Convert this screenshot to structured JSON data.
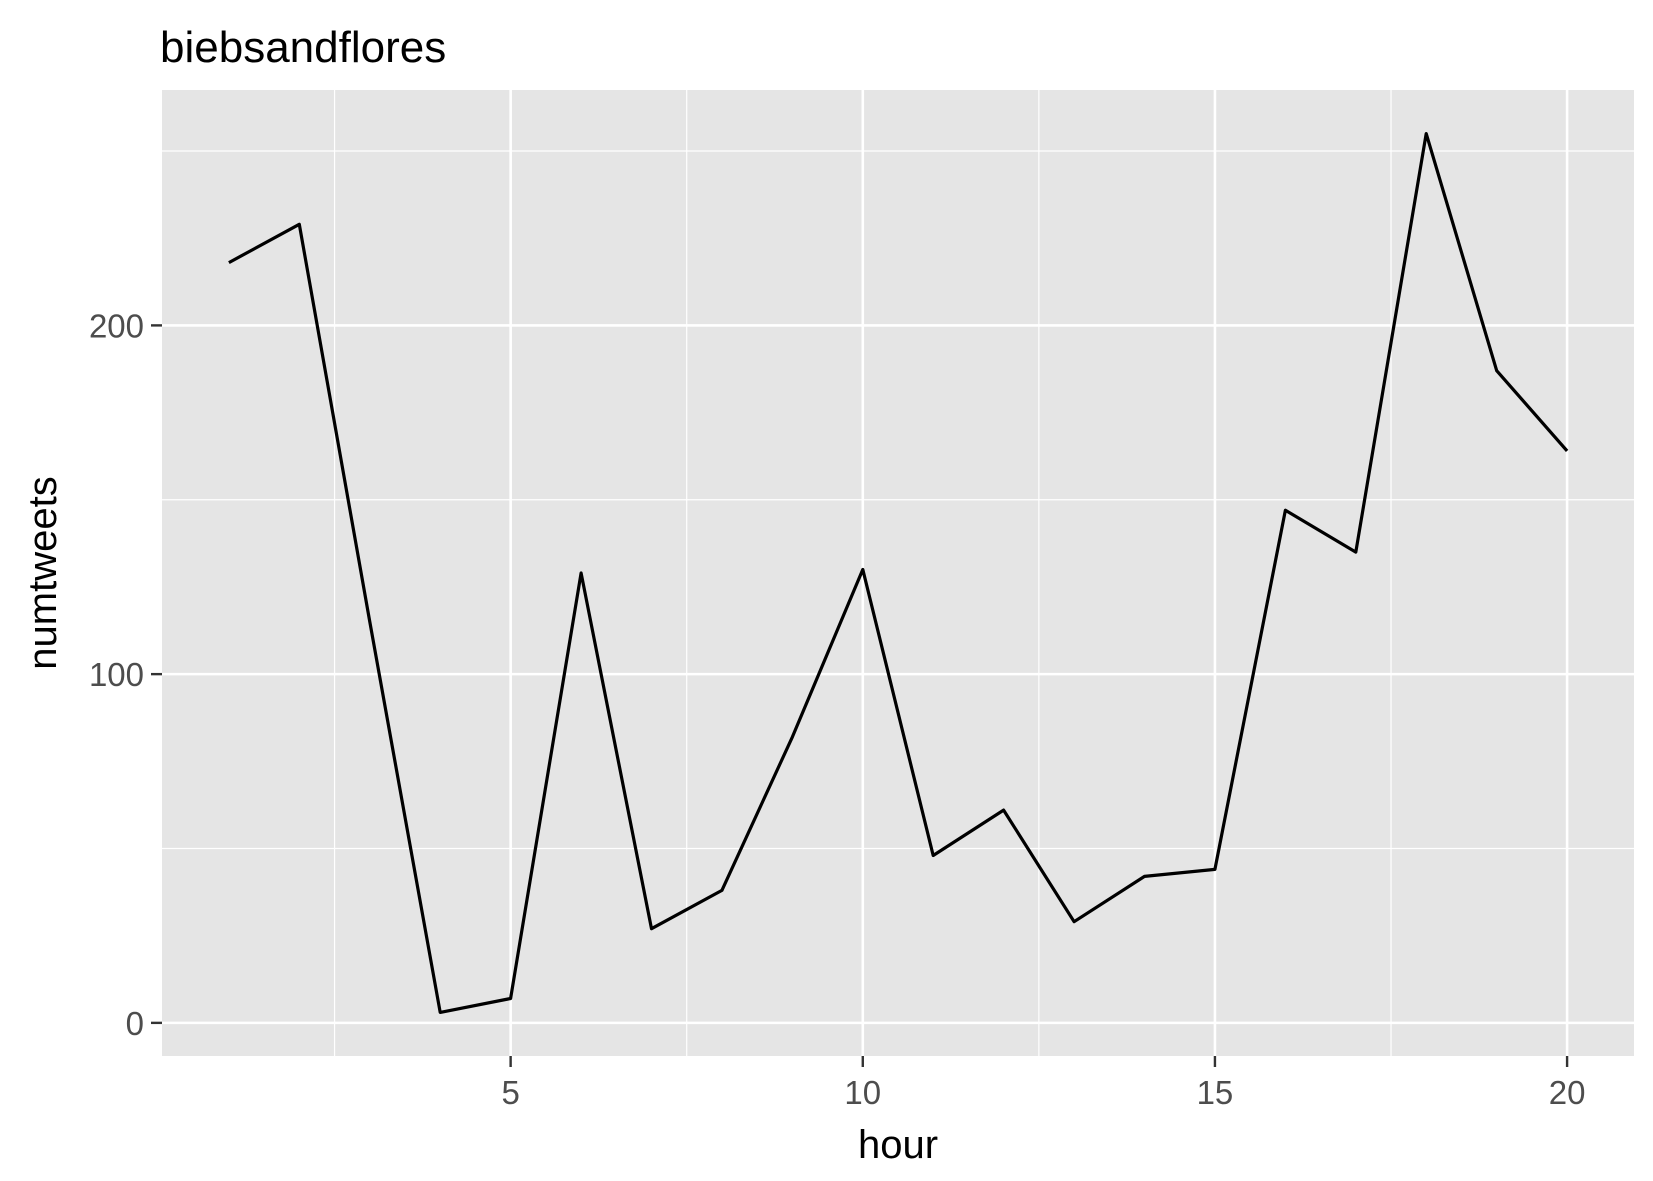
{
  "chart_data": {
    "type": "line",
    "title": "biebsandflores",
    "xlabel": "hour",
    "ylabel": "numtweets",
    "x": [
      1,
      2,
      3,
      4,
      5,
      6,
      7,
      8,
      9,
      10,
      11,
      12,
      13,
      14,
      15,
      16,
      17,
      18,
      19,
      20
    ],
    "series": [
      {
        "values": [
          218,
          229,
          115,
          3,
          7,
          129,
          27,
          38,
          82,
          130,
          48,
          61,
          29,
          42,
          44,
          147,
          135,
          255,
          187,
          164
        ]
      }
    ],
    "xlim": [
      0.05,
      20.95
    ],
    "ylim": [
      -9.5,
      267.5
    ],
    "x_ticks": [
      5,
      10,
      15,
      20
    ],
    "y_ticks": [
      0,
      100,
      200
    ],
    "grid": true,
    "colors": {
      "panel": "#e5e5e5",
      "grid": "#ffffff",
      "line": "#000000",
      "tick_text": "#4d4d4d",
      "text": "#000000"
    }
  }
}
